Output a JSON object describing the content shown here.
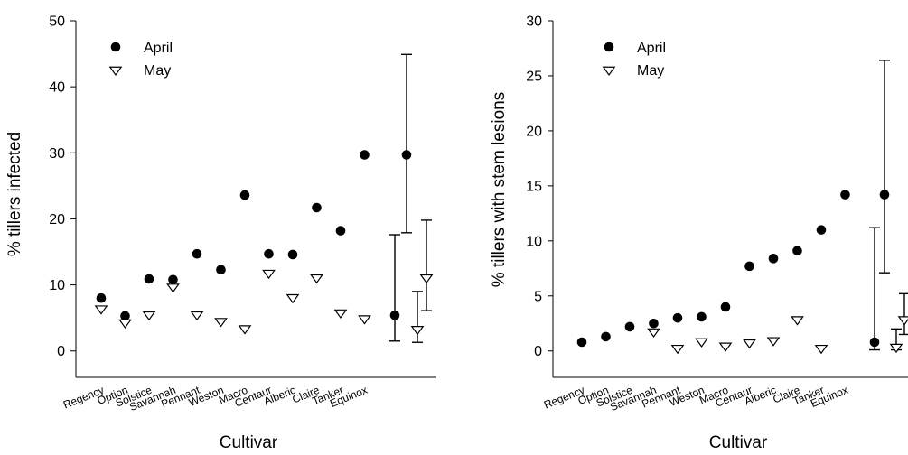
{
  "chart_data": [
    {
      "type": "scatter",
      "ylabel": "% tillers infected",
      "xlabel": "Cultivar",
      "ylim": [
        -4,
        50
      ],
      "yticks": [
        0,
        10,
        20,
        30,
        40,
        50
      ],
      "categories": [
        "Regency",
        "Option",
        "Solstice",
        "Savannah",
        "Pennant",
        "Weston",
        "Macro",
        "Centaur",
        "Alberic",
        "Claire",
        "Tanker",
        "Equinox"
      ],
      "legend": {
        "placement": "top-left",
        "entries": [
          "April",
          "May"
        ]
      },
      "series": [
        {
          "name": "April",
          "marker": "filled-circle",
          "color": "#000000",
          "values": [
            8.0,
            5.3,
            10.9,
            10.8,
            14.7,
            12.3,
            23.6,
            14.7,
            14.6,
            21.7,
            18.2,
            29.7
          ]
        },
        {
          "name": "May",
          "marker": "open-triangle-down",
          "color": "#000000",
          "values": [
            6.3,
            4.2,
            5.4,
            9.6,
            5.4,
            4.4,
            3.3,
            11.7,
            8.0,
            11.0,
            5.7,
            4.8
          ]
        }
      ],
      "error_bars": [
        {
          "series": "April",
          "low": 1.5,
          "mid": 5.4,
          "high": 17.6
        },
        {
          "series": "April",
          "low": 17.9,
          "mid": 29.7,
          "high": 44.9
        },
        {
          "series": "May",
          "low": 1.3,
          "mid": 3.2,
          "high": 9.0
        },
        {
          "series": "May",
          "low": 6.1,
          "mid": 11.0,
          "high": 19.8
        }
      ]
    },
    {
      "type": "scatter",
      "ylabel": "% tillers with stem lesions",
      "xlabel": "Cultivar",
      "ylim": [
        -2.4,
        30
      ],
      "yticks": [
        0,
        5,
        10,
        15,
        20,
        25,
        30
      ],
      "categories": [
        "Regency",
        "Option",
        "Solstice",
        "Savannah",
        "Pennant",
        "Weston",
        "Macro",
        "Centaur",
        "Alberic",
        "Claire",
        "Tanker",
        "Equinox"
      ],
      "legend": {
        "placement": "top-left",
        "entries": [
          "April",
          "May"
        ]
      },
      "series": [
        {
          "name": "April",
          "marker": "filled-circle",
          "color": "#000000",
          "values": [
            0.8,
            1.3,
            2.2,
            2.5,
            3.0,
            3.1,
            4.0,
            7.7,
            8.4,
            9.1,
            11.0,
            14.2
          ]
        },
        {
          "name": "May",
          "marker": "open-triangle-down",
          "color": "#000000",
          "values": [
            null,
            null,
            null,
            1.7,
            0.2,
            0.8,
            0.4,
            0.7,
            0.9,
            2.8,
            0.2,
            null
          ]
        }
      ],
      "error_bars": [
        {
          "series": "April",
          "low": 0.1,
          "mid": 0.8,
          "high": 11.2
        },
        {
          "series": "April",
          "low": 7.1,
          "mid": 14.2,
          "high": 26.4
        },
        {
          "series": "May",
          "low": 0.1,
          "mid": 0.3,
          "high": 2.0
        },
        {
          "series": "May",
          "low": 1.5,
          "mid": 2.8,
          "high": 5.2
        }
      ]
    }
  ]
}
